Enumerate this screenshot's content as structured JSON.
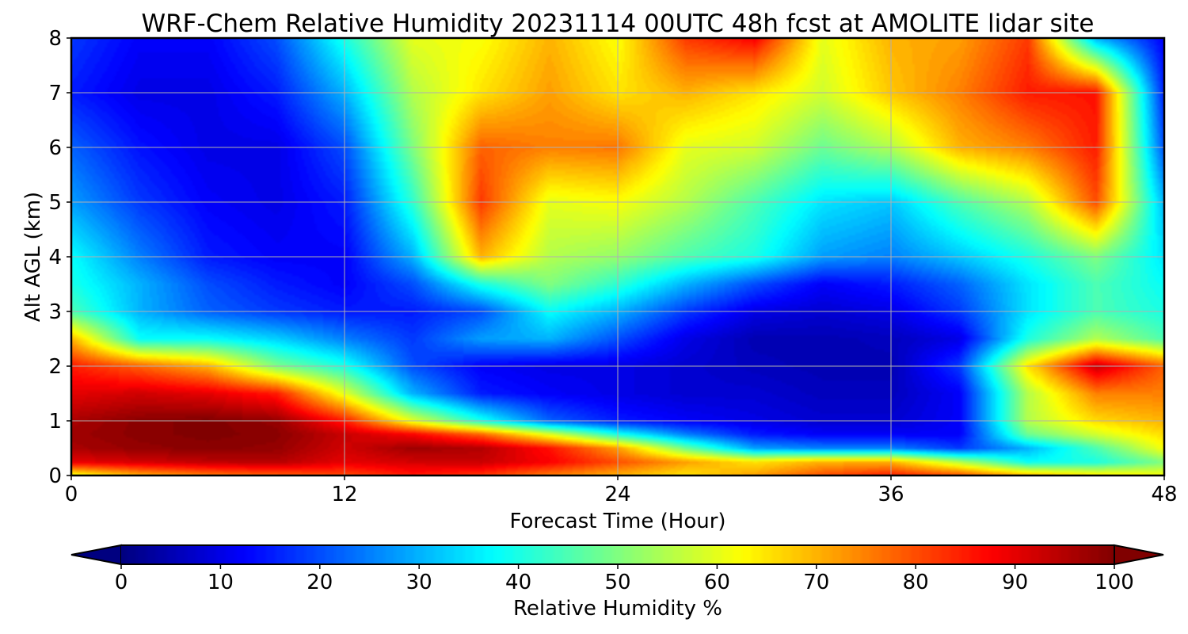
{
  "chart_data": {
    "type": "heatmap",
    "title": "WRF-Chem Relative Humidity 20231114 00UTC 48h fcst at AMOLITE lidar site",
    "xlabel": "Forecast Time (Hour)",
    "ylabel": "Alt AGL (km)",
    "xlim": [
      0,
      48
    ],
    "ylim": [
      0,
      8
    ],
    "x_ticks": [
      0,
      12,
      24,
      36,
      48
    ],
    "y_ticks": [
      0,
      1,
      2,
      3,
      4,
      5,
      6,
      7,
      8
    ],
    "grid": true,
    "colormap": "jet",
    "colorbar": {
      "label": "Relative Humidity %",
      "ticks": [
        0,
        10,
        20,
        30,
        40,
        50,
        60,
        70,
        80,
        90,
        100
      ],
      "range": [
        0,
        100
      ],
      "extend": "both"
    },
    "x": [
      0,
      3,
      6,
      9,
      12,
      15,
      18,
      21,
      24,
      27,
      30,
      33,
      36,
      39,
      42,
      45,
      48
    ],
    "y": [
      0,
      0.25,
      0.5,
      0.75,
      1,
      1.5,
      2,
      2.5,
      3,
      3.5,
      4,
      5,
      6,
      7,
      8
    ],
    "z": [
      [
        60,
        70,
        75,
        78,
        80,
        85,
        82,
        75,
        70,
        65,
        72,
        80,
        85,
        80,
        70,
        65,
        62
      ],
      [
        90,
        92,
        94,
        95,
        90,
        92,
        93,
        88,
        80,
        72,
        65,
        70,
        70,
        55,
        38,
        40,
        50
      ],
      [
        96,
        98,
        99,
        98,
        92,
        97,
        95,
        86,
        72,
        48,
        28,
        25,
        25,
        18,
        30,
        45,
        62
      ],
      [
        97,
        99,
        100,
        99,
        93,
        88,
        78,
        60,
        40,
        25,
        15,
        12,
        12,
        12,
        48,
        58,
        66
      ],
      [
        96,
        99,
        100,
        98,
        85,
        60,
        40,
        22,
        15,
        12,
        10,
        8,
        8,
        12,
        55,
        66,
        70
      ],
      [
        90,
        92,
        90,
        85,
        60,
        30,
        15,
        12,
        10,
        8,
        8,
        6,
        6,
        12,
        55,
        75,
        75
      ],
      [
        85,
        78,
        70,
        50,
        40,
        20,
        12,
        10,
        10,
        8,
        6,
        5,
        5,
        18,
        65,
        93,
        78
      ],
      [
        70,
        38,
        38,
        33,
        25,
        18,
        28,
        30,
        20,
        10,
        5,
        5,
        6,
        10,
        40,
        55,
        45
      ],
      [
        45,
        30,
        22,
        18,
        15,
        15,
        20,
        38,
        30,
        18,
        10,
        8,
        10,
        18,
        35,
        45,
        40
      ],
      [
        40,
        30,
        20,
        15,
        12,
        20,
        40,
        50,
        42,
        30,
        20,
        12,
        15,
        22,
        35,
        45,
        38
      ],
      [
        38,
        25,
        15,
        12,
        12,
        30,
        70,
        55,
        52,
        45,
        40,
        28,
        25,
        32,
        40,
        50,
        35
      ],
      [
        28,
        18,
        12,
        10,
        15,
        42,
        82,
        60,
        62,
        55,
        45,
        35,
        32,
        45,
        55,
        80,
        30
      ],
      [
        22,
        14,
        10,
        10,
        20,
        50,
        78,
        75,
        76,
        60,
        58,
        48,
        55,
        70,
        75,
        85,
        20
      ],
      [
        15,
        10,
        10,
        15,
        30,
        55,
        65,
        72,
        65,
        70,
        65,
        58,
        68,
        75,
        85,
        86,
        15
      ],
      [
        18,
        12,
        12,
        20,
        40,
        60,
        62,
        70,
        62,
        82,
        88,
        60,
        70,
        72,
        82,
        30,
        12
      ]
    ]
  }
}
